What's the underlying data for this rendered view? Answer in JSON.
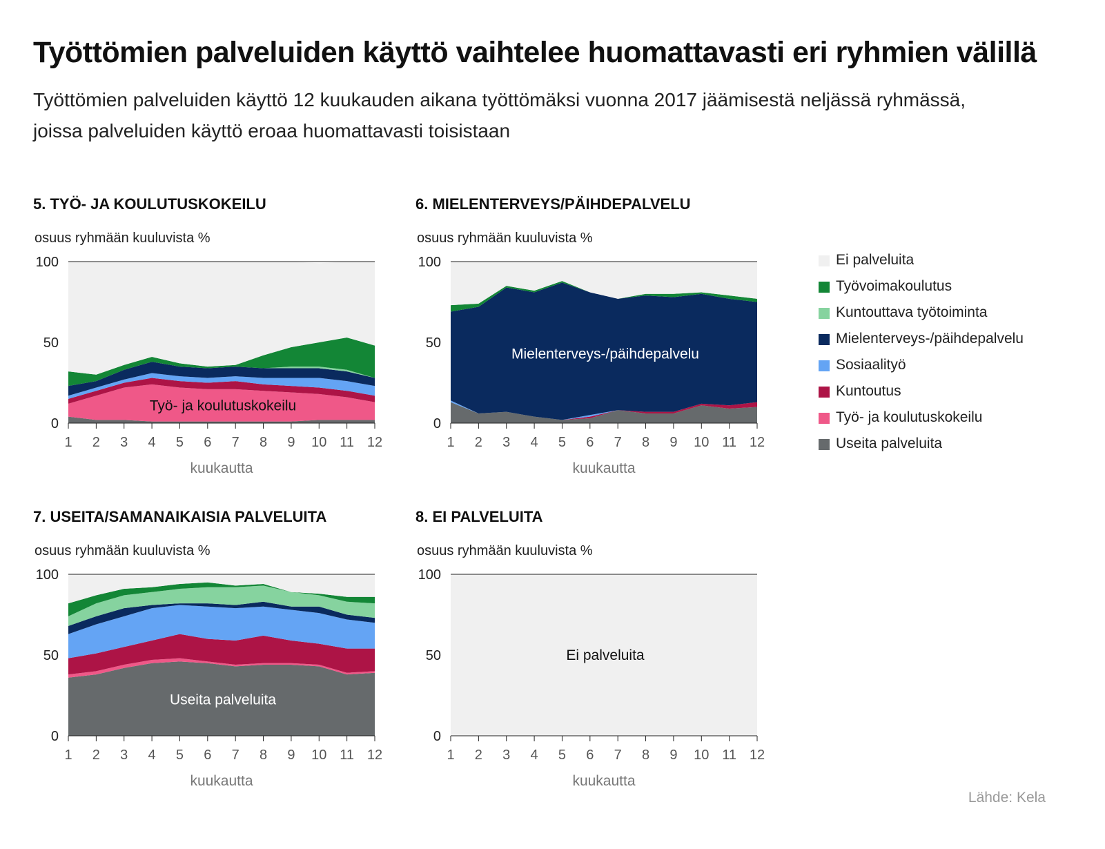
{
  "title": "Työttömien palveluiden käyttö vaihtelee huomattavasti eri ryhmien välillä",
  "subtitle": "Työttömien palveluiden käyttö 12 kuukauden aikana työttömäksi vuonna 2017 jäämisestä neljässä ryhmässä, joissa palveluiden käyttö eroaa huomattavasti toisistaan",
  "source": "Lähde: Kela",
  "colors": {
    "Ei palveluita": "#f0f0f0",
    "Työvoimakoulutus": "#138636",
    "Kuntouttava työtoiminta": "#86d39f",
    "Mielenterveys-/päihdepalvelu": "#0a2a5e",
    "Sosiaalityö": "#64a4f4",
    "Kuntoutus": "#ad1446",
    "Työ- ja koulutuskokeilu": "#ef5888",
    "Useita palveluita": "#666a6c"
  },
  "legend": [
    "Ei palveluita",
    "Työvoimakoulutus",
    "Kuntouttava työtoiminta",
    "Mielenterveys-/päihdepalvelu",
    "Sosiaalityö",
    "Kuntoutus",
    "Työ- ja koulutuskokeilu",
    "Useita palveluita"
  ],
  "chart_data": [
    {
      "type": "area",
      "stacked": true,
      "title": "5. TYÖ- JA KOULUTUSKOKEILU",
      "ylabel": "osuus ryhmään kuuluvista %",
      "xlabel": "kuukautta",
      "ylim": [
        0,
        100
      ],
      "yticks": [
        0,
        50,
        100
      ],
      "x": [
        1,
        2,
        3,
        4,
        5,
        6,
        7,
        8,
        9,
        10,
        11,
        12
      ],
      "inline_label": "Työ- ja koulutuskokeilu",
      "series": [
        {
          "name": "Useita palveluita",
          "values": [
            4,
            2,
            2,
            1,
            1,
            1,
            1,
            1,
            1,
            2,
            2,
            2
          ]
        },
        {
          "name": "Työ- ja koulutuskokeilu",
          "values": [
            8,
            15,
            20,
            23,
            21,
            20,
            20,
            19,
            18,
            16,
            14,
            11
          ]
        },
        {
          "name": "Kuntoutus",
          "values": [
            3,
            3,
            3,
            4,
            4,
            4,
            5,
            4,
            4,
            4,
            4,
            4
          ]
        },
        {
          "name": "Sosiaalityö",
          "values": [
            2,
            2,
            2,
            3,
            3,
            3,
            3,
            4,
            5,
            6,
            6,
            6
          ]
        },
        {
          "name": "Mielenterveys-/päihdepalvelu",
          "values": [
            6,
            4,
            6,
            7,
            6,
            6,
            6,
            6,
            6,
            6,
            6,
            5
          ]
        },
        {
          "name": "Kuntouttava työtoiminta",
          "values": [
            0,
            0,
            0,
            0,
            0,
            0,
            0,
            0,
            1,
            1,
            1,
            0
          ]
        },
        {
          "name": "Työvoimakoulutus",
          "values": [
            9,
            4,
            3,
            3,
            2,
            1,
            1,
            8,
            12,
            15,
            20,
            20
          ]
        },
        {
          "name": "Ei palveluita",
          "values": [
            68,
            70,
            64,
            59,
            63,
            65,
            64,
            58,
            53,
            49,
            47,
            52
          ]
        }
      ]
    },
    {
      "type": "area",
      "stacked": true,
      "title": "6. MIELENTERVEYS/PÄIHDEPALVELU",
      "ylabel": "osuus ryhmään kuuluvista %",
      "xlabel": "kuukautta",
      "ylim": [
        0,
        100
      ],
      "yticks": [
        0,
        50,
        100
      ],
      "x": [
        1,
        2,
        3,
        4,
        5,
        6,
        7,
        8,
        9,
        10,
        11,
        12
      ],
      "inline_label": "Mielenterveys-/päihdepalvelu",
      "series": [
        {
          "name": "Useita palveluita",
          "values": [
            13,
            6,
            7,
            4,
            2,
            3,
            8,
            6,
            6,
            11,
            9,
            10
          ]
        },
        {
          "name": "Työ- ja koulutuskokeilu",
          "values": [
            0,
            0,
            0,
            0,
            0,
            0,
            0,
            0,
            0,
            0,
            0,
            0
          ]
        },
        {
          "name": "Kuntoutus",
          "values": [
            0,
            0,
            0,
            0,
            0,
            1,
            0,
            1,
            1,
            1,
            2,
            3
          ]
        },
        {
          "name": "Sosiaalityö",
          "values": [
            1,
            0,
            0,
            0,
            0,
            1,
            0,
            0,
            0,
            0,
            0,
            0
          ]
        },
        {
          "name": "Mielenterveys-/päihdepalvelu",
          "values": [
            55,
            66,
            77,
            77,
            85,
            76,
            69,
            72,
            71,
            68,
            66,
            62
          ]
        },
        {
          "name": "Kuntouttava työtoiminta",
          "values": [
            0,
            0,
            0,
            0,
            0,
            0,
            0,
            0,
            0,
            0,
            0,
            0
          ]
        },
        {
          "name": "Työvoimakoulutus",
          "values": [
            4,
            2,
            1,
            1,
            1,
            0,
            0,
            1,
            2,
            1,
            2,
            2
          ]
        },
        {
          "name": "Ei palveluita",
          "values": [
            27,
            26,
            15,
            18,
            12,
            19,
            23,
            20,
            20,
            19,
            21,
            23
          ]
        }
      ]
    },
    {
      "type": "area",
      "stacked": true,
      "title": "7. USEITA/SAMANAIKAISIA PALVELUITA",
      "ylabel": "osuus ryhmään kuuluvista %",
      "xlabel": "kuukautta",
      "ylim": [
        0,
        100
      ],
      "yticks": [
        0,
        50,
        100
      ],
      "x": [
        1,
        2,
        3,
        4,
        5,
        6,
        7,
        8,
        9,
        10,
        11,
        12
      ],
      "inline_label": "Useita palveluita",
      "series": [
        {
          "name": "Useita palveluita",
          "values": [
            36,
            38,
            42,
            45,
            46,
            45,
            43,
            44,
            44,
            43,
            38,
            39
          ]
        },
        {
          "name": "Työ- ja koulutuskokeilu",
          "values": [
            2,
            2,
            2,
            2,
            2,
            1,
            1,
            1,
            1,
            1,
            1,
            1
          ]
        },
        {
          "name": "Kuntoutus",
          "values": [
            10,
            11,
            11,
            12,
            15,
            14,
            15,
            17,
            14,
            13,
            15,
            14
          ]
        },
        {
          "name": "Sosiaalityö",
          "values": [
            15,
            18,
            19,
            20,
            18,
            20,
            20,
            18,
            19,
            19,
            18,
            16
          ]
        },
        {
          "name": "Mielenterveys-/päihdepalvelu",
          "values": [
            5,
            5,
            5,
            2,
            1,
            2,
            2,
            3,
            2,
            4,
            3,
            3
          ]
        },
        {
          "name": "Kuntouttava työtoiminta",
          "values": [
            6,
            8,
            8,
            8,
            9,
            10,
            11,
            10,
            9,
            7,
            8,
            9
          ]
        },
        {
          "name": "Työvoimakoulutus",
          "values": [
            8,
            5,
            4,
            3,
            3,
            3,
            1,
            1,
            0,
            1,
            3,
            4
          ]
        },
        {
          "name": "Ei palveluita",
          "values": [
            18,
            13,
            9,
            8,
            6,
            5,
            7,
            6,
            11,
            12,
            14,
            14
          ]
        }
      ]
    },
    {
      "type": "area",
      "stacked": true,
      "title": "8. EI PALVELUITA",
      "ylabel": "osuus ryhmään kuuluvista %",
      "xlabel": "kuukautta",
      "ylim": [
        0,
        100
      ],
      "yticks": [
        0,
        50,
        100
      ],
      "x": [
        1,
        2,
        3,
        4,
        5,
        6,
        7,
        8,
        9,
        10,
        11,
        12
      ],
      "inline_label": "Ei palveluita",
      "series": [
        {
          "name": "Useita palveluita",
          "values": [
            0,
            0,
            0,
            0,
            0,
            0,
            0,
            0,
            0,
            0,
            0,
            0
          ]
        },
        {
          "name": "Työ- ja koulutuskokeilu",
          "values": [
            0,
            0,
            0,
            0,
            0,
            0,
            0,
            0,
            0,
            0,
            0,
            0
          ]
        },
        {
          "name": "Kuntoutus",
          "values": [
            0,
            0,
            0,
            0,
            0,
            0,
            0,
            0,
            0,
            0,
            0,
            0
          ]
        },
        {
          "name": "Sosiaalityö",
          "values": [
            0,
            0,
            0,
            0,
            0,
            0,
            0,
            0,
            0,
            0,
            0,
            0
          ]
        },
        {
          "name": "Mielenterveys-/päihdepalvelu",
          "values": [
            0,
            0,
            0,
            0,
            0,
            0,
            0,
            0,
            0,
            0,
            0,
            0
          ]
        },
        {
          "name": "Kuntouttava työtoiminta",
          "values": [
            0,
            0,
            0,
            0,
            0,
            0,
            0,
            0,
            0,
            0,
            0,
            0
          ]
        },
        {
          "name": "Työvoimakoulutus",
          "values": [
            0,
            0,
            0,
            0,
            0,
            0,
            0,
            0,
            0,
            0,
            0,
            0
          ]
        },
        {
          "name": "Ei palveluita",
          "values": [
            100,
            100,
            100,
            100,
            100,
            100,
            100,
            100,
            100,
            100,
            100,
            100
          ]
        }
      ]
    }
  ]
}
